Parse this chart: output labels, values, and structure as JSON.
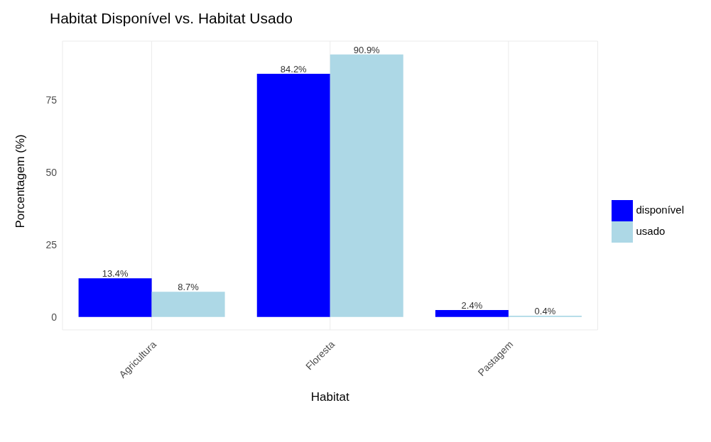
{
  "chart_data": {
    "type": "bar",
    "title": "Habitat Disponível vs. Habitat Usado",
    "xlabel": "Habitat",
    "ylabel": "Porcentagem (%)",
    "categories": [
      "Agricultura",
      "Floresta",
      "Pastagem"
    ],
    "series": [
      {
        "name": "disponível",
        "color": "#0000ff",
        "values": [
          13.4,
          84.2,
          2.4
        ],
        "value_labels": [
          "13.4%",
          "84.2%",
          "2.4%"
        ]
      },
      {
        "name": "usado",
        "color": "#add8e6",
        "values": [
          8.7,
          90.9,
          0.4
        ],
        "value_labels": [
          "8.7%",
          "90.9%",
          "0.4%"
        ]
      }
    ],
    "ylim": [
      -4.5,
      95.5
    ],
    "yticks": [
      0,
      25,
      50,
      75
    ],
    "grid": true,
    "legend": "right"
  }
}
